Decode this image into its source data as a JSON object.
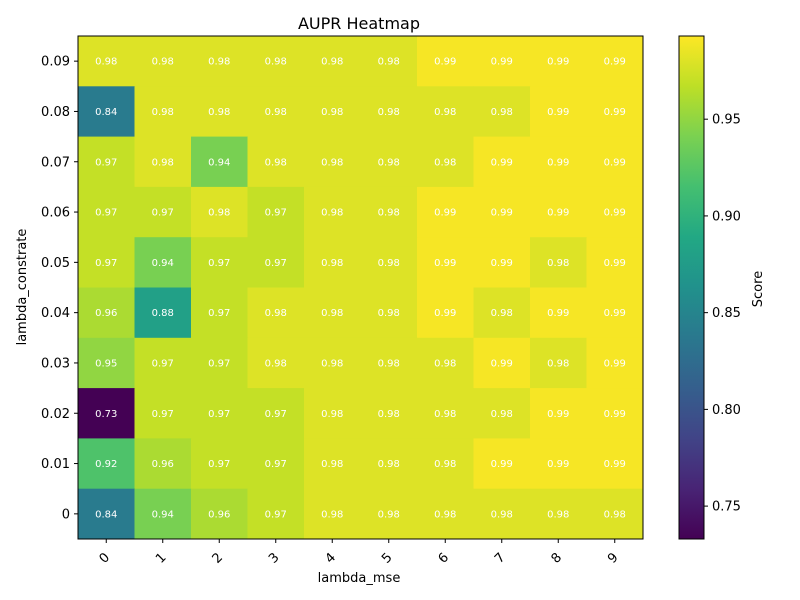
{
  "chart_data": {
    "type": "heatmap",
    "title": "AUPR Heatmap",
    "xlabel": "lambda_mse",
    "ylabel": "lambda_constrate",
    "x_categories": [
      "0",
      "1",
      "2",
      "3",
      "4",
      "5",
      "6",
      "7",
      "8",
      "9"
    ],
    "y_categories": [
      "0.09",
      "0.08",
      "0.07",
      "0.06",
      "0.05",
      "0.04",
      "0.03",
      "0.02",
      "0.01",
      "0"
    ],
    "values": [
      [
        0.98,
        0.98,
        0.98,
        0.98,
        0.98,
        0.98,
        0.99,
        0.99,
        0.99,
        0.99
      ],
      [
        0.84,
        0.98,
        0.98,
        0.98,
        0.98,
        0.98,
        0.98,
        0.98,
        0.99,
        0.99
      ],
      [
        0.97,
        0.98,
        0.94,
        0.98,
        0.98,
        0.98,
        0.98,
        0.99,
        0.99,
        0.99
      ],
      [
        0.97,
        0.97,
        0.98,
        0.97,
        0.98,
        0.98,
        0.99,
        0.99,
        0.99,
        0.99
      ],
      [
        0.97,
        0.94,
        0.97,
        0.97,
        0.98,
        0.98,
        0.99,
        0.99,
        0.98,
        0.99
      ],
      [
        0.96,
        0.88,
        0.97,
        0.98,
        0.98,
        0.98,
        0.99,
        0.98,
        0.99,
        0.99
      ],
      [
        0.95,
        0.97,
        0.97,
        0.98,
        0.98,
        0.98,
        0.98,
        0.99,
        0.98,
        0.99
      ],
      [
        0.73,
        0.97,
        0.97,
        0.97,
        0.98,
        0.98,
        0.98,
        0.98,
        0.99,
        0.99
      ],
      [
        0.92,
        0.96,
        0.97,
        0.97,
        0.98,
        0.98,
        0.98,
        0.99,
        0.99,
        0.99
      ],
      [
        0.84,
        0.94,
        0.96,
        0.97,
        0.98,
        0.98,
        0.98,
        0.98,
        0.98,
        0.98
      ]
    ],
    "colorbar": {
      "label": "Score",
      "colormap": "viridis",
      "range": [
        0.733,
        0.993
      ],
      "ticks": [
        "0.75",
        "0.80",
        "0.85",
        "0.90",
        "0.95"
      ]
    }
  }
}
